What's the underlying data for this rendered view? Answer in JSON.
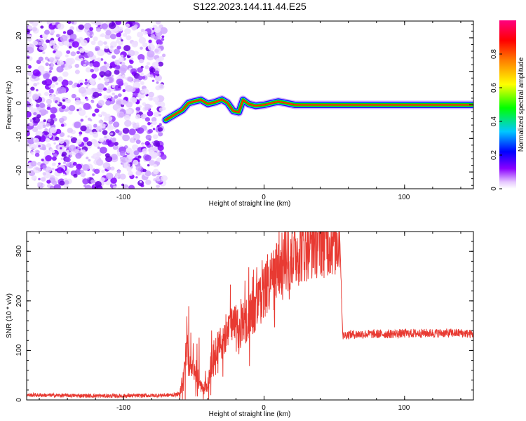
{
  "title": "S122.2023.144.11.44.E25",
  "chart_data": [
    {
      "type": "heatmap",
      "xlabel": "Height of straight line (km)",
      "ylabel": "Frequency (Hz)",
      "xlim": [
        -169,
        149
      ],
      "ylim": [
        -25,
        25
      ],
      "x_ticks": [
        -100,
        0,
        100
      ],
      "y_ticks": [
        -20,
        -10,
        0,
        10,
        20
      ],
      "colorbar": {
        "label": "Normalized spectral amplitude",
        "range": [
          0,
          1
        ],
        "ticks": [
          0.0,
          0.2,
          0.4,
          0.6,
          0.8
        ],
        "colormap": [
          "#ffffff",
          "#8a00ff",
          "#0000ff",
          "#00e5ff",
          "#00ff00",
          "#ffff00",
          "#ff8000",
          "#ff0000",
          "#ff0080"
        ]
      },
      "noise_region": {
        "x_range": [
          -169,
          -71
        ],
        "description_color": "#8a2be2"
      },
      "signal_track": [
        {
          "x": -70,
          "y": -4.5
        },
        {
          "x": -66,
          "y": -3.5
        },
        {
          "x": -62,
          "y": -2.5
        },
        {
          "x": -58,
          "y": -1.5
        },
        {
          "x": -54,
          "y": 0.5
        },
        {
          "x": -50,
          "y": 1.0
        },
        {
          "x": -45,
          "y": 1.5
        },
        {
          "x": -40,
          "y": 0.3
        },
        {
          "x": -35,
          "y": 0.8
        },
        {
          "x": -30,
          "y": 1.6
        },
        {
          "x": -26,
          "y": 0.6
        },
        {
          "x": -22,
          "y": -1.8
        },
        {
          "x": -18,
          "y": -2.2
        },
        {
          "x": -15,
          "y": 1.5
        },
        {
          "x": -11,
          "y": 0.3
        },
        {
          "x": -6,
          "y": -0.3
        },
        {
          "x": 0,
          "y": 0.0
        },
        {
          "x": 5,
          "y": 0.5
        },
        {
          "x": 10,
          "y": 1.0
        },
        {
          "x": 15,
          "y": 0.6
        },
        {
          "x": 22,
          "y": 0.0
        },
        {
          "x": 40,
          "y": 0.0
        },
        {
          "x": 80,
          "y": 0.0
        },
        {
          "x": 120,
          "y": 0.0
        },
        {
          "x": 148,
          "y": 0.0
        }
      ]
    },
    {
      "type": "line",
      "xlabel": "Height of straight line (km)",
      "ylabel": "SNR (10 * v/v)",
      "xlim": [
        -169,
        149
      ],
      "ylim": [
        0,
        340
      ],
      "x_ticks": [
        -100,
        0,
        100
      ],
      "y_ticks": [
        0,
        100,
        200,
        300
      ],
      "color": "#e83a32",
      "series": [
        {
          "x": [
            -169,
            -140,
            -110,
            -80,
            -65,
            -60,
            -57,
            -55,
            -52,
            -50,
            -47,
            -44,
            -40,
            -36,
            -33,
            -30,
            -25,
            -20,
            -18,
            -15,
            -12,
            -8,
            -5,
            0,
            5,
            10,
            15,
            20,
            25,
            30,
            35,
            40,
            45,
            50,
            54,
            55,
            56,
            60,
            70,
            80,
            100,
            120,
            140,
            149
          ],
          "y": [
            10,
            9,
            8,
            9,
            10,
            12,
            60,
            110,
            70,
            60,
            40,
            20,
            30,
            90,
            110,
            115,
            140,
            155,
            120,
            165,
            160,
            180,
            190,
            215,
            240,
            265,
            280,
            295,
            305,
            315,
            322,
            325,
            326,
            327,
            325,
            220,
            130,
            132,
            133,
            133,
            134,
            135,
            135,
            133
          ]
        }
      ]
    }
  ]
}
